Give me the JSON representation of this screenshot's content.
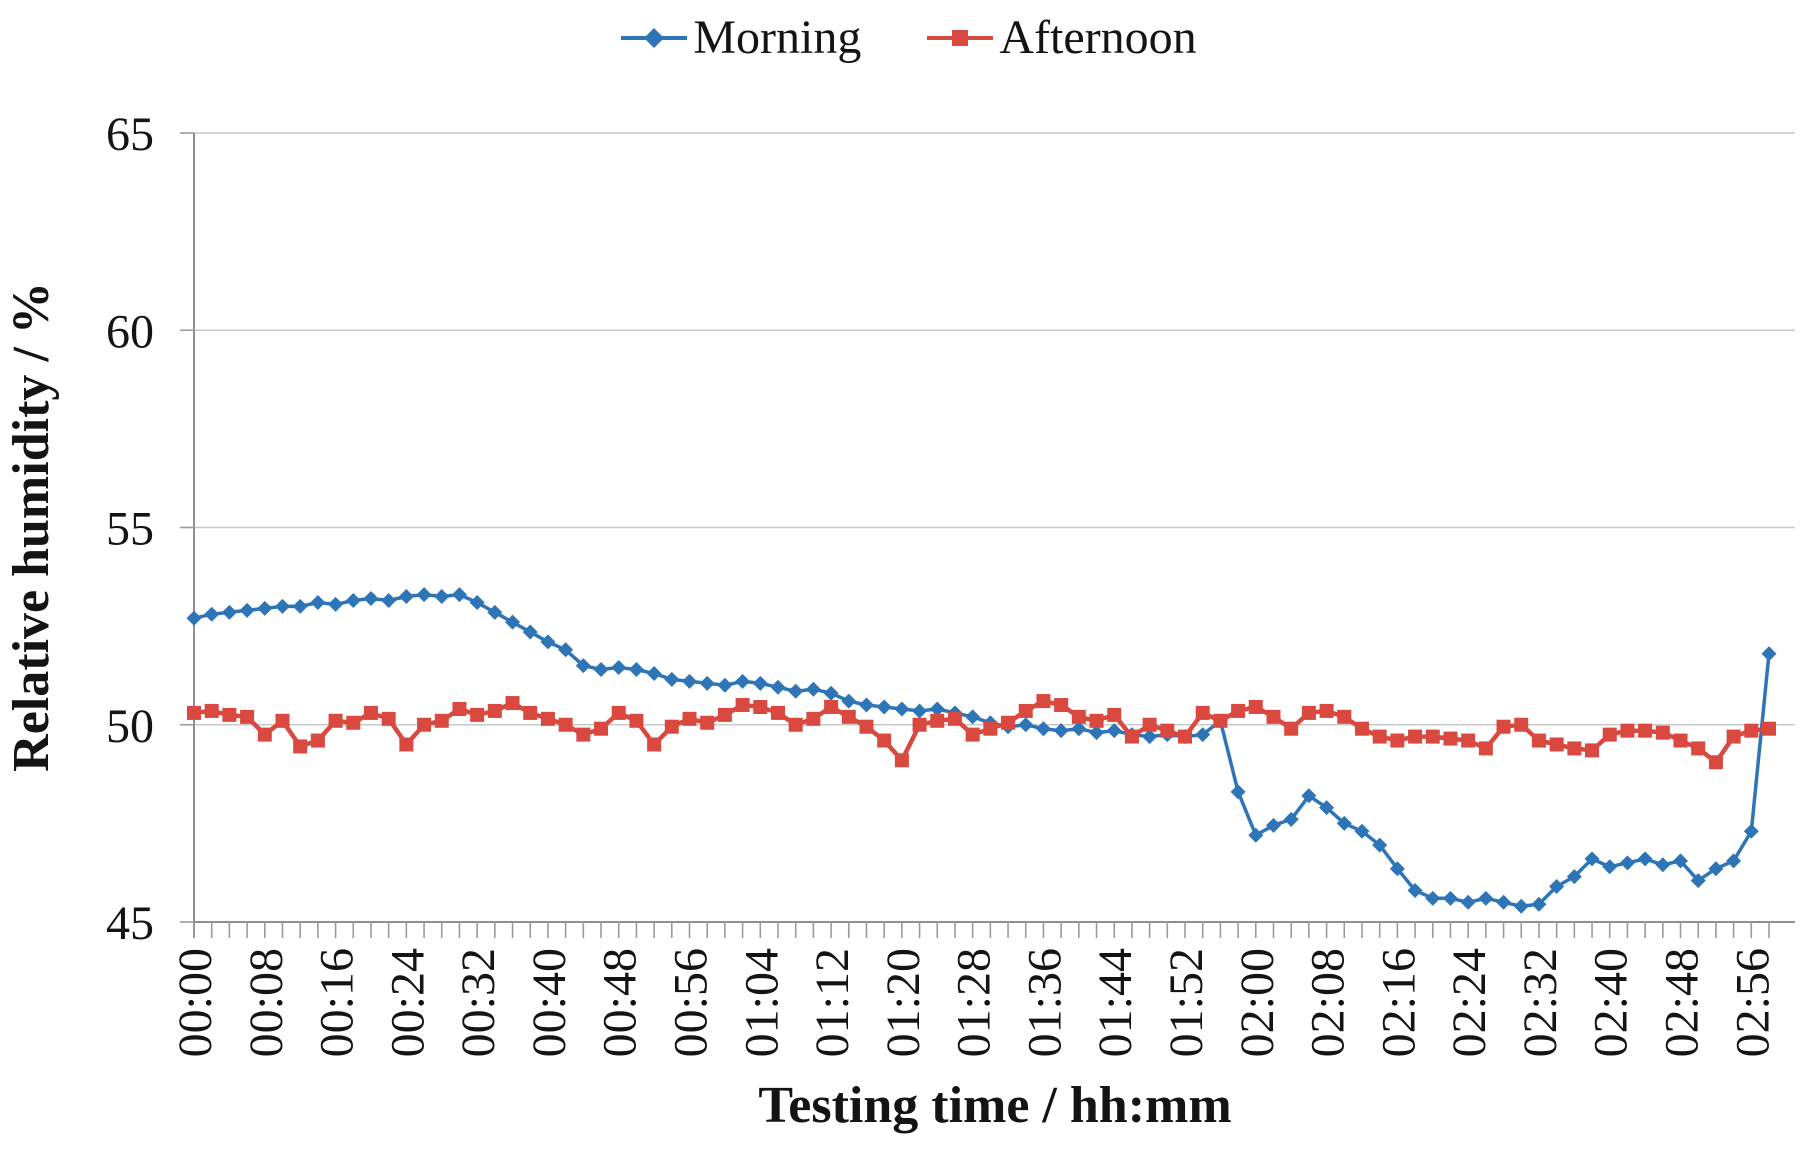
{
  "chart_data": {
    "type": "line",
    "title": "",
    "xlabel": "Testing time / hh:mm",
    "ylabel": "Relative humidity / %",
    "ylim": [
      45,
      65
    ],
    "yticks": [
      45,
      50,
      55,
      60,
      65
    ],
    "grid": "horizontal",
    "legend_position": "top",
    "x_tick_labels": [
      "00:00",
      "00:08",
      "00:16",
      "00:24",
      "00:32",
      "00:40",
      "00:48",
      "00:56",
      "01:04",
      "01:12",
      "01:20",
      "01:28",
      "01:36",
      "01:44",
      "01:52",
      "02:00",
      "02:08",
      "02:16",
      "02:24",
      "02:32",
      "02:40",
      "02:48",
      "02:56"
    ],
    "x_label_every_n_points": 4,
    "x": [
      "00:00",
      "00:02",
      "00:04",
      "00:06",
      "00:08",
      "00:10",
      "00:12",
      "00:14",
      "00:16",
      "00:18",
      "00:20",
      "00:22",
      "00:24",
      "00:26",
      "00:28",
      "00:30",
      "00:32",
      "00:34",
      "00:36",
      "00:38",
      "00:40",
      "00:42",
      "00:44",
      "00:46",
      "00:48",
      "00:50",
      "00:52",
      "00:54",
      "00:56",
      "00:58",
      "01:00",
      "01:02",
      "01:04",
      "01:06",
      "01:08",
      "01:10",
      "01:12",
      "01:14",
      "01:16",
      "01:18",
      "01:20",
      "01:22",
      "01:24",
      "01:26",
      "01:28",
      "01:30",
      "01:32",
      "01:34",
      "01:36",
      "01:38",
      "01:40",
      "01:42",
      "01:44",
      "01:46",
      "01:48",
      "01:50",
      "01:52",
      "01:54",
      "01:56",
      "01:58",
      "02:00",
      "02:02",
      "02:04",
      "02:06",
      "02:08",
      "02:10",
      "02:12",
      "02:14",
      "02:16",
      "02:18",
      "02:20",
      "02:22",
      "02:24",
      "02:26",
      "02:28",
      "02:30",
      "02:32",
      "02:34",
      "02:36",
      "02:38",
      "02:40",
      "02:42",
      "02:44",
      "02:46",
      "02:48",
      "02:50",
      "02:52",
      "02:54",
      "02:56",
      "02:58"
    ],
    "series": [
      {
        "name": "Morning",
        "color": "#2E75B8",
        "marker": "diamond",
        "values": [
          52.7,
          52.8,
          52.85,
          52.9,
          52.95,
          53.0,
          53.0,
          53.1,
          53.05,
          53.15,
          53.2,
          53.15,
          53.25,
          53.3,
          53.25,
          53.3,
          53.1,
          52.85,
          52.6,
          52.35,
          52.1,
          51.9,
          51.5,
          51.4,
          51.45,
          51.4,
          51.3,
          51.15,
          51.1,
          51.05,
          51.0,
          51.1,
          51.05,
          50.95,
          50.85,
          50.9,
          50.8,
          50.6,
          50.5,
          50.45,
          50.4,
          50.35,
          50.4,
          50.3,
          50.2,
          50.05,
          49.95,
          50.0,
          49.9,
          49.85,
          49.9,
          49.8,
          49.85,
          49.75,
          49.7,
          49.75,
          49.7,
          49.75,
          50.1,
          48.3,
          47.2,
          47.45,
          47.6,
          48.2,
          47.9,
          47.5,
          47.3,
          46.95,
          46.35,
          45.8,
          45.6,
          45.6,
          45.5,
          45.6,
          45.5,
          45.4,
          45.45,
          45.9,
          46.15,
          46.6,
          46.4,
          46.5,
          46.6,
          46.45,
          46.55,
          46.05,
          46.35,
          46.55,
          47.3,
          51.8
        ]
      },
      {
        "name": "Afternoon",
        "color": "#D9493F",
        "marker": "square",
        "values": [
          50.3,
          50.35,
          50.25,
          50.2,
          49.75,
          50.1,
          49.45,
          49.6,
          50.1,
          50.05,
          50.3,
          50.15,
          49.5,
          50.0,
          50.1,
          50.4,
          50.25,
          50.35,
          50.55,
          50.3,
          50.15,
          50.0,
          49.75,
          49.9,
          50.3,
          50.1,
          49.5,
          49.95,
          50.15,
          50.05,
          50.25,
          50.5,
          50.45,
          50.3,
          50.0,
          50.15,
          50.45,
          50.2,
          49.95,
          49.6,
          49.1,
          50.0,
          50.1,
          50.15,
          49.75,
          49.9,
          50.05,
          50.35,
          50.6,
          50.5,
          50.2,
          50.1,
          50.25,
          49.7,
          50.0,
          49.85,
          49.7,
          50.3,
          50.1,
          50.35,
          50.45,
          50.2,
          49.9,
          50.3,
          50.35,
          50.2,
          49.9,
          49.7,
          49.6,
          49.7,
          49.7,
          49.65,
          49.6,
          49.4,
          49.95,
          50.0,
          49.6,
          49.5,
          49.4,
          49.35,
          49.75,
          49.85,
          49.85,
          49.8,
          49.6,
          49.4,
          49.05,
          49.7,
          49.85,
          49.9
        ]
      }
    ]
  }
}
